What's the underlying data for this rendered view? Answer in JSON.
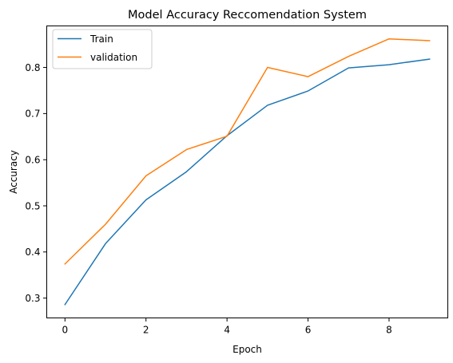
{
  "chart_data": {
    "type": "line",
    "title": "Model Accuracy Reccomendation System",
    "xlabel": "Epoch",
    "ylabel": "Accuracy",
    "x": [
      0,
      1,
      2,
      3,
      4,
      5,
      6,
      7,
      8,
      9
    ],
    "xlim": [
      -0.45,
      9.45
    ],
    "ylim": [
      0.257,
      0.89
    ],
    "xticks": [
      0,
      2,
      4,
      6,
      8
    ],
    "xtick_labels": [
      "0",
      "2",
      "4",
      "6",
      "8"
    ],
    "yticks": [
      0.3,
      0.4,
      0.5,
      0.6,
      0.7,
      0.8
    ],
    "ytick_labels": [
      "0.3",
      "0.4",
      "0.5",
      "0.6",
      "0.7",
      "0.8"
    ],
    "grid": false,
    "legend_position": "top-left",
    "series": [
      {
        "name": "Train",
        "color": "#1f77b4",
        "values": [
          0.286,
          0.418,
          0.513,
          0.574,
          0.652,
          0.718,
          0.749,
          0.799,
          0.806,
          0.818
        ]
      },
      {
        "name": "validation",
        "color": "#ff7f0e",
        "values": [
          0.374,
          0.46,
          0.565,
          0.622,
          0.651,
          0.8,
          0.78,
          0.824,
          0.862,
          0.858
        ]
      }
    ]
  }
}
